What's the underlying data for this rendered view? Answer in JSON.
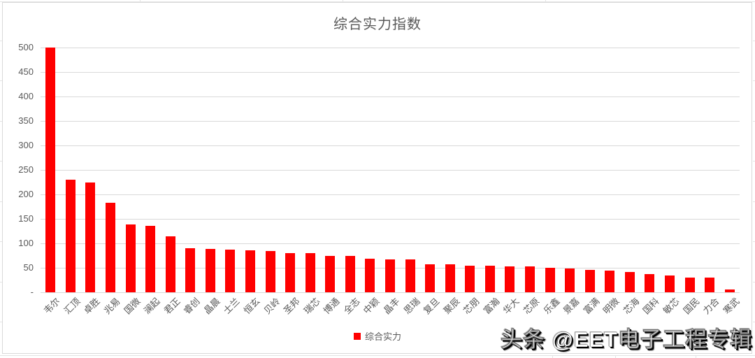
{
  "chart_data": {
    "type": "bar",
    "title": "综合实力指数",
    "categories": [
      "韦尔",
      "汇顶",
      "卓胜",
      "兆易",
      "国微",
      "澜起",
      "君正",
      "睿创",
      "晶晨",
      "士兰",
      "恒玄",
      "贝岭",
      "圣邦",
      "瑞芯",
      "博通",
      "全志",
      "中颖",
      "晶丰",
      "思瑞",
      "复旦",
      "聚辰",
      "芯朋",
      "富瀚",
      "华大",
      "芯原",
      "乐鑫",
      "景嘉",
      "富满",
      "明微",
      "芯海",
      "国科",
      "敏芯",
      "国民",
      "力合",
      "寒武"
    ],
    "values": [
      500,
      230,
      224,
      182,
      138,
      135,
      114,
      89,
      88,
      86,
      85,
      84,
      80,
      79,
      74,
      73,
      68,
      67,
      66,
      57,
      56,
      54,
      53,
      52,
      52,
      50,
      48,
      45,
      44,
      41,
      37,
      33,
      30,
      30,
      5
    ],
    "series": [
      {
        "name": "综合实力"
      }
    ],
    "xlabel": "",
    "ylabel": "",
    "ylim": [
      0,
      500
    ],
    "ytick_step": 50,
    "ytick_labels": [
      "-",
      "50",
      "100",
      "150",
      "200",
      "250",
      "300",
      "350",
      "400",
      "450",
      "500"
    ],
    "grid": "horizontal",
    "legend_position": "bottom",
    "bar_color": "#ff0000"
  },
  "legend": {
    "label": "综合实力"
  },
  "watermark": {
    "text": "头条 @EET电子工程专辑"
  },
  "colors": {
    "bar": "#ff0000",
    "gridline": "#d9d9d9",
    "axis_text": "#595959",
    "chart_border": "#d9d9d9",
    "background": "#ffffff"
  }
}
